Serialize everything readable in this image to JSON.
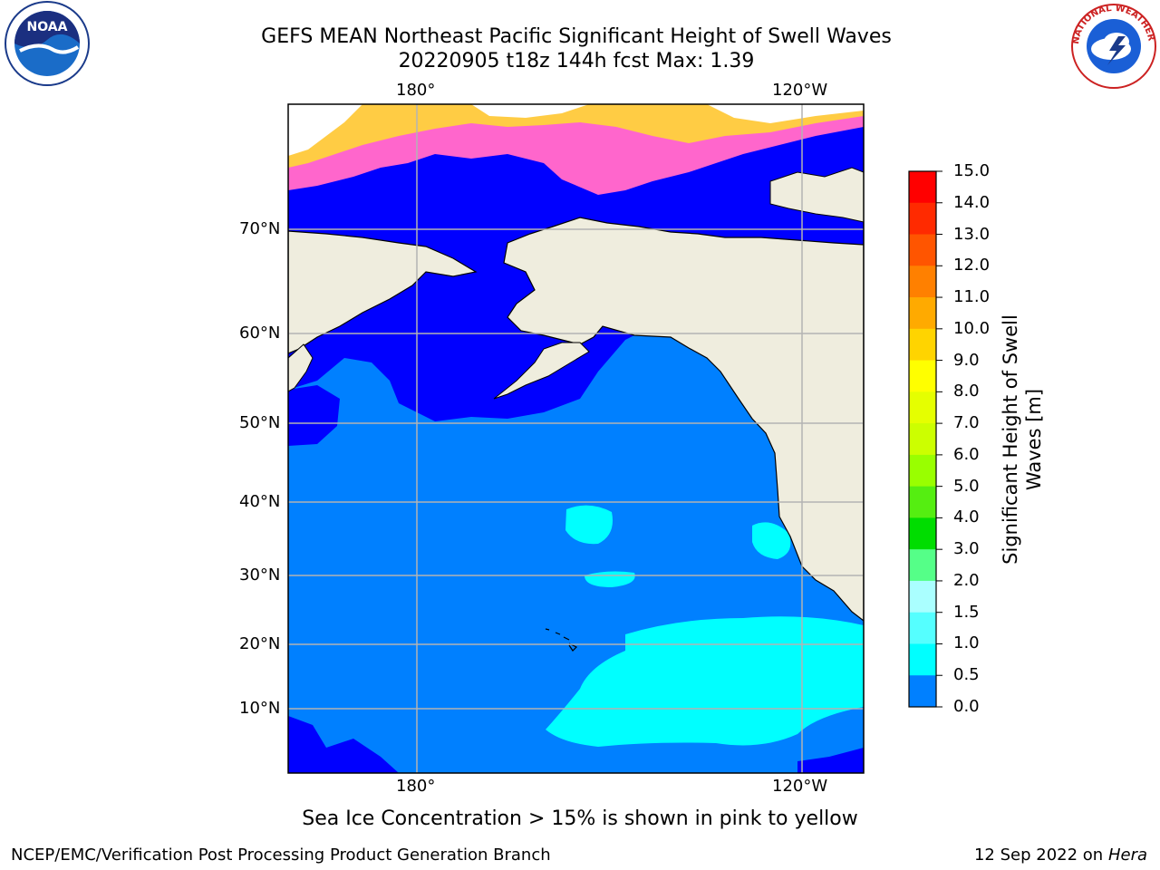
{
  "title": {
    "line1": "GEFS MEAN Northeast Pacific Significant Height of Swell Waves",
    "line2": "20220905 t18z 144h fcst   Max: 1.39"
  },
  "map": {
    "lon_labels_top": [
      "180°",
      "120°W"
    ],
    "lon_labels_bottom": [
      "180°",
      "120°W"
    ],
    "lat_labels": [
      "70°N",
      "60°N",
      "50°N",
      "40°N",
      "30°N",
      "20°N",
      "10°N"
    ],
    "colors": {
      "ocean_0_0_5": "#0000ff",
      "ocean_0_5_1_0": "#0080ff",
      "ocean_1_0_1_5": "#00ffff",
      "land": "#efedde",
      "grid": "#b3b3b3",
      "ice_pink": "#ff66cc",
      "ice_yellow": "#ffcc44"
    }
  },
  "colorbar": {
    "ticks": [
      "15.0",
      "14.0",
      "13.0",
      "12.0",
      "11.0",
      "10.0",
      "9.0",
      "8.0",
      "7.0",
      "6.0",
      "5.0",
      "4.0",
      "3.0",
      "2.0",
      "1.5",
      "1.0",
      "0.5",
      "0.0"
    ],
    "colors": [
      "#ff0000",
      "#ff2a00",
      "#ff5500",
      "#ff8000",
      "#ffaa00",
      "#ffd400",
      "#ffff00",
      "#e5ff00",
      "#ccff00",
      "#99ff00",
      "#55ee11",
      "#00dd00",
      "#55ff88",
      "#aaffff",
      "#55ffff",
      "#00ffff",
      "#0080ff",
      "#0000ff"
    ],
    "label": "Significant Height of Swell Waves [m]"
  },
  "note": "Sea Ice Concentration > 15% is shown in pink to yellow",
  "footer": {
    "left": "NCEP/EMC/Verification Post Processing Product Generation Branch",
    "right_date": "12 Sep 2022 on",
    "right_machine": "Hera"
  },
  "logos": {
    "left": {
      "name": "noaa-logo",
      "text": "NOAA"
    },
    "right": {
      "name": "nws-logo",
      "text": "NATIONAL WEATHER SERVICE"
    }
  }
}
